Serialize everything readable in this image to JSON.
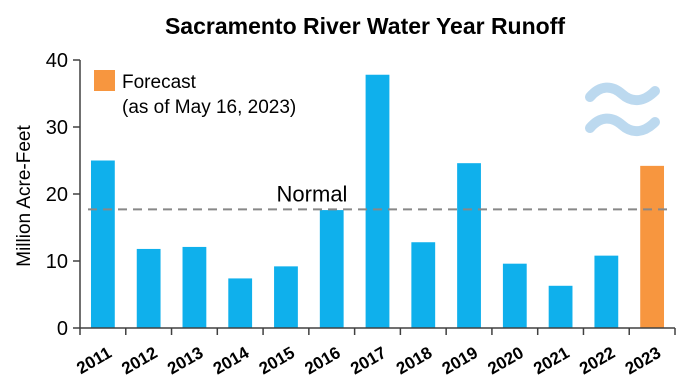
{
  "chart_data": {
    "type": "bar",
    "title": "Sacramento River Water Year Runoff",
    "ylabel": "Million Acre-Feet",
    "xlabel": "",
    "ylim": [
      0,
      40
    ],
    "yticks": [
      0,
      10,
      20,
      30,
      40
    ],
    "categories": [
      "2011",
      "2012",
      "2013",
      "2014",
      "2015",
      "2016",
      "2017",
      "2018",
      "2019",
      "2020",
      "2021",
      "2022",
      "2023"
    ],
    "values": [
      25.0,
      11.8,
      12.1,
      7.4,
      9.2,
      17.6,
      37.8,
      12.8,
      24.6,
      9.6,
      6.3,
      10.8,
      24.2
    ],
    "forecast_categories": [
      "2023"
    ],
    "colors": {
      "observed": "#0FB0EC",
      "forecast": "#F7963F",
      "normal_line": "#888888",
      "axis": "#404040",
      "wave_icon": "#BCD9EF"
    },
    "reference_line": {
      "label": "Normal",
      "value": 17.7
    },
    "legend": {
      "label_line1": "Forecast",
      "label_line2": "(as of May 16, 2023)",
      "placement": "top-left"
    },
    "icon": "water-waves-icon",
    "grid": false
  }
}
